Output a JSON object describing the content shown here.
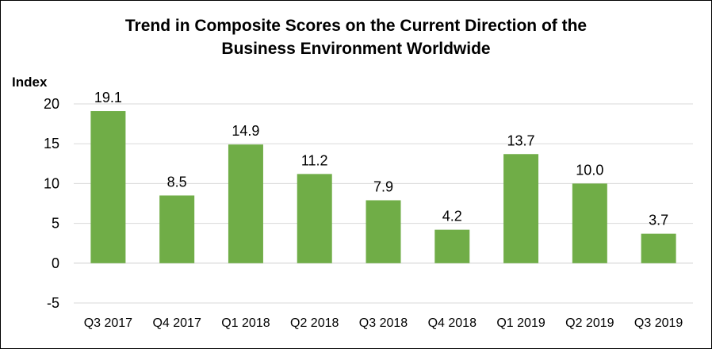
{
  "chart_data": {
    "type": "bar",
    "title_lines": [
      "Trend in Composite Scores on the Current Direction of the",
      "Business Environment Worldwide"
    ],
    "ylabel": "Index",
    "xlabel": "",
    "categories": [
      "Q3 2017",
      "Q4 2017",
      "Q1 2018",
      "Q2 2018",
      "Q3 2018",
      "Q4 2018",
      "Q1 2019",
      "Q2 2019",
      "Q3 2019"
    ],
    "values": [
      19.1,
      8.5,
      14.9,
      11.2,
      7.9,
      4.2,
      13.7,
      10.0,
      3.7
    ],
    "data_labels": [
      "19.1",
      "8.5",
      "14.9",
      "11.2",
      "7.9",
      "4.2",
      "13.7",
      "10.0",
      "3.7"
    ],
    "ylim": [
      -5,
      20
    ],
    "yticks": [
      20,
      15,
      10,
      5,
      0,
      -5
    ],
    "grid": true,
    "bar_color": "#70AD47",
    "grid_color": "#D9D9D9"
  }
}
